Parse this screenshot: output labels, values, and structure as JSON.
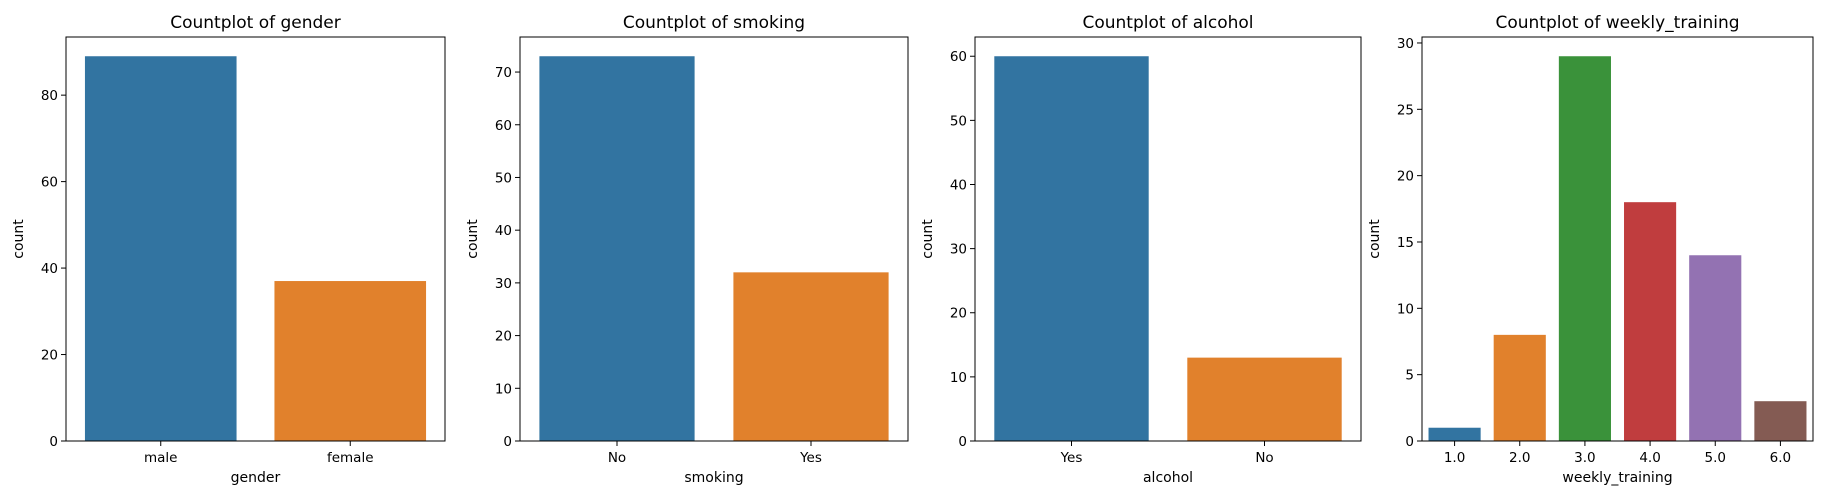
{
  "colors": [
    "#3274a1",
    "#e1812c",
    "#3a923a",
    "#c03d3e",
    "#9372b2",
    "#845b53"
  ],
  "chart_data": [
    {
      "type": "bar",
      "title": "Countplot of gender",
      "xlabel": "gender",
      "ylabel": "count",
      "categories": [
        "male",
        "female"
      ],
      "values": [
        89,
        37
      ],
      "ylim": [
        0,
        93.45
      ],
      "yticks": [
        0,
        20,
        40,
        60,
        80
      ],
      "grid": false
    },
    {
      "type": "bar",
      "title": "Countplot of smoking",
      "xlabel": "smoking",
      "ylabel": "count",
      "categories": [
        "No",
        "Yes"
      ],
      "values": [
        73,
        32
      ],
      "ylim": [
        0,
        76.65
      ],
      "yticks": [
        0,
        10,
        20,
        30,
        40,
        50,
        60,
        70
      ],
      "grid": false
    },
    {
      "type": "bar",
      "title": "Countplot of alcohol",
      "xlabel": "alcohol",
      "ylabel": "count",
      "categories": [
        "Yes",
        "No"
      ],
      "values": [
        60,
        13
      ],
      "ylim": [
        0,
        63
      ],
      "yticks": [
        0,
        10,
        20,
        30,
        40,
        50,
        60
      ],
      "grid": false
    },
    {
      "type": "bar",
      "title": "Countplot of weekly_training",
      "xlabel": "weekly_training",
      "ylabel": "count",
      "categories": [
        "1.0",
        "2.0",
        "3.0",
        "4.0",
        "5.0",
        "6.0"
      ],
      "values": [
        1,
        8,
        29,
        18,
        14,
        3
      ],
      "ylim": [
        0,
        30.45
      ],
      "yticks": [
        0,
        5,
        10,
        15,
        20,
        25,
        30
      ],
      "grid": false
    }
  ]
}
